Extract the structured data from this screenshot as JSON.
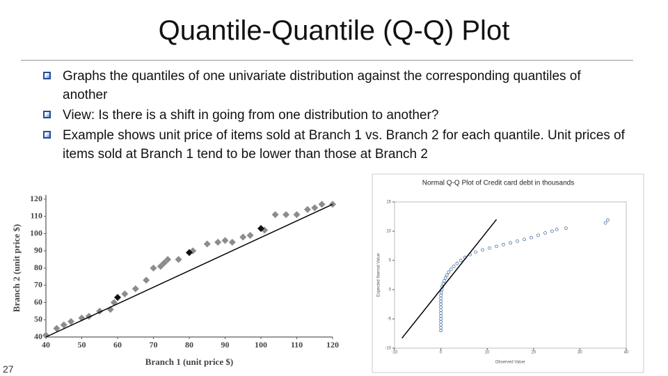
{
  "title": "Quantile-Quantile (Q-Q) Plot",
  "bullets": [
    "Graphs the quantiles of one univariate distribution against the corresponding quantiles of another",
    "View: Is there is a shift in going from one distribution to another?",
    "Example shows unit price of items sold at Branch 1 vs. Branch 2 for each quantile. Unit prices of items sold at Branch 1 tend to be lower than those at Branch 2"
  ],
  "page_number": "27",
  "chart_data": [
    {
      "type": "scatter",
      "xlabel": "Branch 1 (unit price $)",
      "ylabel": "Branch 2 (unit price $)",
      "xlim": [
        40,
        120
      ],
      "ylim": [
        40,
        120
      ],
      "xticks": [
        40,
        50,
        60,
        70,
        80,
        90,
        100,
        110,
        120
      ],
      "yticks": [
        40,
        50,
        60,
        70,
        80,
        90,
        100,
        110,
        120
      ],
      "series": [
        {
          "color": "#8c8c8c",
          "marker": "diamond",
          "x": [
            40,
            43,
            45,
            47,
            50,
            52,
            55,
            58,
            59,
            62,
            65,
            68,
            70,
            72,
            73,
            74,
            77,
            81,
            85,
            88,
            90,
            92,
            95,
            97,
            101,
            104,
            107,
            110,
            113,
            115,
            117,
            120
          ],
          "values": [
            41,
            45,
            47,
            49,
            51,
            52,
            55,
            56,
            60,
            65,
            68,
            73,
            80,
            81,
            83,
            85,
            85,
            90,
            94,
            95,
            96,
            95,
            98,
            99,
            102,
            111,
            111,
            111,
            114,
            115,
            117,
            117
          ]
        },
        {
          "color": "#111111",
          "marker": "diamond",
          "x": [
            60,
            80,
            100
          ],
          "values": [
            63,
            89,
            103
          ]
        },
        {
          "color": "#000000",
          "marker": "line",
          "x": [
            40,
            120
          ],
          "values": [
            40,
            117
          ]
        }
      ]
    },
    {
      "type": "scatter",
      "title": "Normal Q-Q Plot of Credit card debt in thousands",
      "xlabel": "Observed Value",
      "ylabel": "Expected Normal Value",
      "xlim": [
        -10,
        40
      ],
      "ylim": [
        -10,
        15
      ],
      "xticks": [
        -10,
        0,
        10,
        20,
        30,
        40
      ],
      "yticks": [
        -10,
        -5,
        0,
        5,
        10,
        15
      ],
      "series": [
        {
          "color": "#4a6fa5",
          "marker": "circle",
          "x": [
            0,
            0,
            0,
            0,
            0,
            0,
            0,
            0,
            0,
            0,
            0,
            0,
            0,
            0.1,
            0.2,
            0.3,
            0.5,
            0.7,
            1,
            1.3,
            1.7,
            2.2,
            2.8,
            3.5,
            4.3,
            5.2,
            6.3,
            7.5,
            9,
            10.5,
            12,
            13.5,
            15,
            16.5,
            18,
            19.5,
            21,
            22.5,
            24,
            25,
            27,
            35.5,
            36
          ],
          "values": [
            -7,
            -6.5,
            -6,
            -5.5,
            -5,
            -4.5,
            -4,
            -3.5,
            -3,
            -2.5,
            -2,
            -1.5,
            -1,
            -0.5,
            0,
            0.5,
            1,
            1.5,
            2,
            2.5,
            3,
            3.5,
            4,
            4.5,
            5,
            5.5,
            6,
            6.4,
            6.8,
            7.1,
            7.4,
            7.7,
            8,
            8.3,
            8.6,
            8.9,
            9.3,
            9.7,
            10,
            10.3,
            10.5,
            11.4,
            11.9
          ]
        },
        {
          "color": "#000000",
          "marker": "line",
          "x": [
            -8.4,
            12
          ],
          "values": [
            -8.3,
            12
          ]
        }
      ]
    }
  ]
}
